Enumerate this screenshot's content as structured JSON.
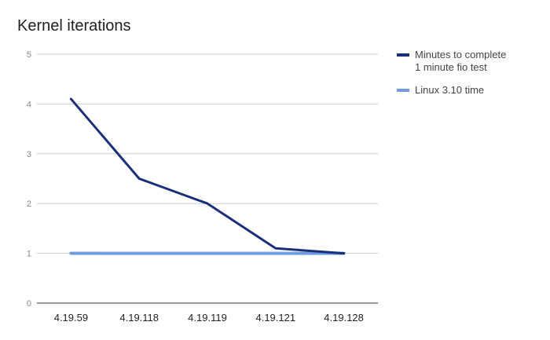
{
  "chart_data": {
    "type": "line",
    "title": "Kernel iterations",
    "categories": [
      "4.19.59",
      "4.19.118",
      "4.19.119",
      "4.19.121",
      "4.19.128"
    ],
    "series": [
      {
        "name": "Minutes to complete\n1 minute fio test",
        "values": [
          4.1,
          2.5,
          2.0,
          1.1,
          1.0
        ],
        "color": "#1a2f7a"
      },
      {
        "name": "Linux 3.10 time",
        "values": [
          1.0,
          1.0,
          1.0,
          1.0,
          1.0
        ],
        "color": "#6f9be0"
      }
    ],
    "yticks": [
      "0",
      "1",
      "2",
      "3",
      "4",
      "5"
    ],
    "ylim": [
      0,
      5
    ],
    "grid": true,
    "legend": "right"
  }
}
